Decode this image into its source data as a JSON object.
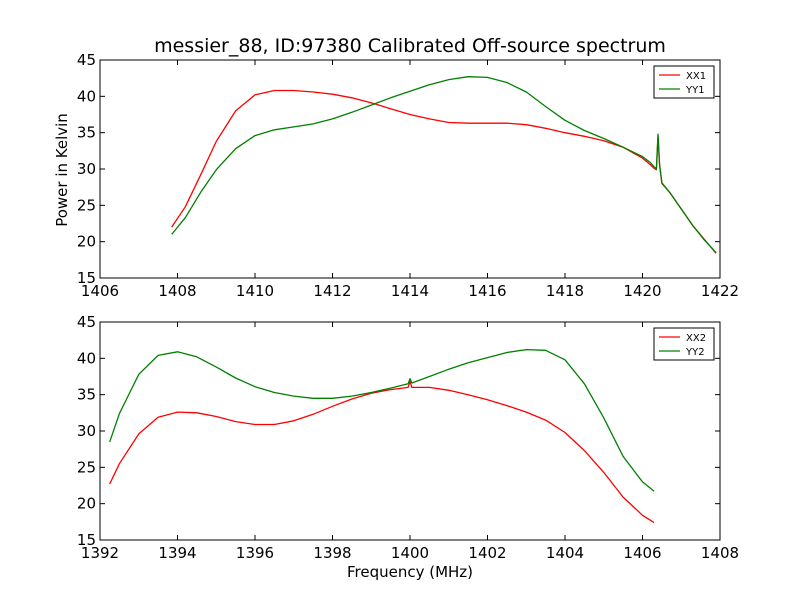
{
  "chart_data": {
    "type": "line",
    "title": "messier_88, ID:97380 Calibrated Off-source spectrum",
    "xlabel": "Frequency (MHz)",
    "ylabel": "Power in Kelvin",
    "colors": {
      "XX": "#ff0000",
      "YY": "#008000"
    },
    "grid": false,
    "legend_placement": "top-right",
    "panels": [
      {
        "xlim": [
          1406,
          1422
        ],
        "ylim": [
          15,
          45
        ],
        "xticks": [
          "1406",
          "1408",
          "1410",
          "1412",
          "1414",
          "1416",
          "1418",
          "1420",
          "1422"
        ],
        "yticks": [
          "15",
          "20",
          "25",
          "30",
          "35",
          "40",
          "45"
        ],
        "series": [
          {
            "name": "XX1",
            "color": "#ff0000",
            "x": [
              1407.85,
              1408.2,
              1408.6,
              1409.0,
              1409.5,
              1410.0,
              1410.5,
              1411.0,
              1411.5,
              1412.0,
              1412.5,
              1413.0,
              1413.5,
              1414.0,
              1414.5,
              1415.0,
              1415.5,
              1416.0,
              1416.5,
              1417.0,
              1417.5,
              1418.0,
              1418.5,
              1419.0,
              1419.5,
              1420.0,
              1420.2,
              1420.3,
              1420.36,
              1420.4,
              1420.44,
              1420.5,
              1420.7,
              1421.0,
              1421.3,
              1421.6,
              1421.9
            ],
            "y": [
              22.0,
              24.8,
              29.2,
              33.8,
              38.0,
              40.2,
              40.8,
              40.8,
              40.6,
              40.3,
              39.8,
              39.1,
              38.3,
              37.5,
              36.9,
              36.4,
              36.3,
              36.3,
              36.3,
              36.1,
              35.6,
              35.0,
              34.5,
              33.9,
              33.0,
              31.5,
              30.6,
              30.1,
              29.9,
              34.5,
              30.5,
              28.0,
              26.8,
              24.5,
              22.2,
              20.3,
              18.4
            ]
          },
          {
            "name": "YY1",
            "color": "#008000",
            "x": [
              1407.85,
              1408.2,
              1408.6,
              1409.0,
              1409.5,
              1410.0,
              1410.5,
              1411.0,
              1411.5,
              1412.0,
              1412.5,
              1413.0,
              1413.5,
              1414.0,
              1414.5,
              1415.0,
              1415.5,
              1416.0,
              1416.5,
              1417.0,
              1417.5,
              1418.0,
              1418.5,
              1419.0,
              1419.5,
              1420.0,
              1420.2,
              1420.3,
              1420.36,
              1420.4,
              1420.44,
              1420.5,
              1420.7,
              1421.0,
              1421.3,
              1421.6,
              1421.9
            ],
            "y": [
              21.0,
              23.3,
              26.8,
              29.9,
              32.8,
              34.6,
              35.4,
              35.8,
              36.2,
              36.9,
              37.8,
              38.8,
              39.8,
              40.7,
              41.6,
              42.3,
              42.7,
              42.6,
              41.9,
              40.6,
              38.6,
              36.7,
              35.3,
              34.2,
              33.0,
              31.7,
              30.9,
              30.3,
              30.0,
              34.8,
              30.6,
              28.1,
              26.8,
              24.5,
              22.2,
              20.2,
              18.5
            ]
          }
        ]
      },
      {
        "xlim": [
          1392,
          1408
        ],
        "ylim": [
          15,
          45
        ],
        "xticks": [
          "1392",
          "1394",
          "1396",
          "1398",
          "1400",
          "1402",
          "1404",
          "1406",
          "1408"
        ],
        "yticks": [
          "15",
          "20",
          "25",
          "30",
          "35",
          "40",
          "45"
        ],
        "series": [
          {
            "name": "XX2",
            "color": "#ff0000",
            "x": [
              1392.25,
              1392.5,
              1393.0,
              1393.5,
              1394.0,
              1394.5,
              1395.0,
              1395.5,
              1396.0,
              1396.5,
              1397.0,
              1397.5,
              1398.0,
              1398.5,
              1399.0,
              1399.5,
              1399.95,
              1400.0,
              1400.05,
              1400.5,
              1401.0,
              1401.5,
              1402.0,
              1402.5,
              1403.0,
              1403.5,
              1404.0,
              1404.5,
              1405.0,
              1405.5,
              1406.0,
              1406.3
            ],
            "y": [
              22.7,
              25.5,
              29.6,
              31.9,
              32.6,
              32.5,
              32.0,
              31.3,
              30.9,
              30.9,
              31.4,
              32.3,
              33.4,
              34.4,
              35.2,
              35.7,
              36.0,
              36.8,
              36.0,
              36.0,
              35.6,
              35.0,
              34.3,
              33.5,
              32.6,
              31.5,
              29.8,
              27.3,
              24.3,
              20.9,
              18.4,
              17.4
            ]
          },
          {
            "name": "YY2",
            "color": "#008000",
            "x": [
              1392.25,
              1392.5,
              1393.0,
              1393.5,
              1394.0,
              1394.5,
              1395.0,
              1395.5,
              1396.0,
              1396.5,
              1397.0,
              1397.5,
              1398.0,
              1398.5,
              1399.0,
              1399.5,
              1399.95,
              1400.0,
              1400.05,
              1400.5,
              1401.0,
              1401.5,
              1402.0,
              1402.5,
              1403.0,
              1403.5,
              1404.0,
              1404.5,
              1405.0,
              1405.5,
              1406.0,
              1406.3
            ],
            "y": [
              28.5,
              32.4,
              37.8,
              40.4,
              40.9,
              40.2,
              38.8,
              37.3,
              36.1,
              35.3,
              34.8,
              34.5,
              34.5,
              34.8,
              35.3,
              35.9,
              36.5,
              37.2,
              36.6,
              37.5,
              38.5,
              39.4,
              40.1,
              40.8,
              41.2,
              41.1,
              39.8,
              36.5,
              31.8,
              26.5,
              23.0,
              21.7
            ]
          }
        ]
      }
    ]
  }
}
